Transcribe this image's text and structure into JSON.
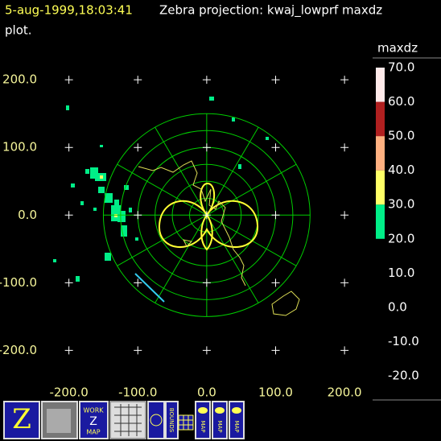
{
  "header": {
    "timestamp": "5-aug-1999,18:03:41",
    "title": "Zebra projection: kwaj_lowprf maxdz",
    "title_continued": "plot."
  },
  "plot": {
    "xlim": [
      -300,
      340
    ],
    "ylim": [
      -265,
      318
    ],
    "xticks": [
      {
        "value": -200,
        "label": "-200.0"
      },
      {
        "value": -100,
        "label": "-100.0"
      },
      {
        "value": 0,
        "label": "0.0"
      },
      {
        "value": 100,
        "label": "100.0"
      },
      {
        "value": 200,
        "label": "200.0"
      }
    ],
    "yticks": [
      {
        "value": -200,
        "label": "-200.0"
      },
      {
        "value": -100,
        "label": "-100.0"
      },
      {
        "value": 0,
        "label": "0.0"
      },
      {
        "value": 100,
        "label": "100.0"
      },
      {
        "value": 200,
        "label": "200.0"
      }
    ]
  },
  "colorbar": {
    "title": "maxdz",
    "lim": [
      -20,
      70
    ],
    "segments": [
      {
        "min": 20,
        "max": 30,
        "color": "#00ee88"
      },
      {
        "min": 30,
        "max": 40,
        "color": "#ffff66"
      },
      {
        "min": 40,
        "max": 50,
        "color": "#ffb080"
      },
      {
        "min": 50,
        "max": 60,
        "color": "#b02020"
      },
      {
        "min": 60,
        "max": 70,
        "color": "#ffeaea"
      }
    ],
    "ticks": [
      {
        "value": 70,
        "label": "70.0"
      },
      {
        "value": 60,
        "label": "60.0"
      },
      {
        "value": 50,
        "label": "50.0"
      },
      {
        "value": 40,
        "label": "40.0"
      },
      {
        "value": 30,
        "label": "30.0"
      },
      {
        "value": 20,
        "label": "20.0"
      },
      {
        "value": 10,
        "label": "10.0"
      },
      {
        "value": 0,
        "label": "0.0"
      },
      {
        "value": -10,
        "label": "-10.0"
      },
      {
        "value": -20,
        "label": "-20.0"
      }
    ]
  },
  "toolbar": {
    "work_icon": [
      "WORK",
      "Z",
      "MAP"
    ],
    "bounds_icon": "BOUNDS",
    "map_icons": [
      "MAP",
      "MAP",
      "MAP"
    ]
  }
}
